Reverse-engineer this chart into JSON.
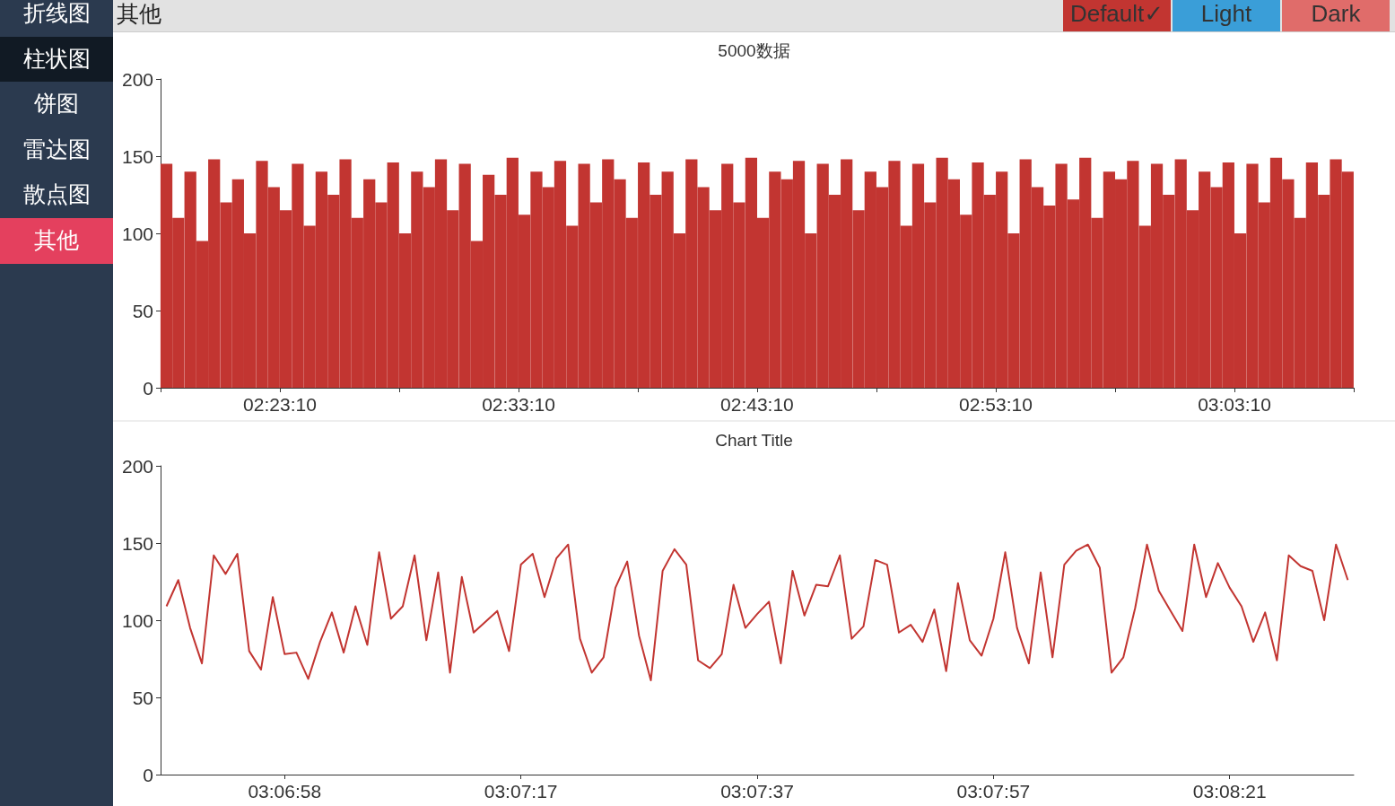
{
  "chart_data": [
    {
      "type": "other",
      "title": "其他",
      "annotations": [
        "折线图",
        "柱状图",
        "饼图",
        "雷达图",
        "散点图",
        "其他",
        "Default✓",
        "Light",
        "Dark"
      ]
    },
    {
      "type": "bar",
      "title": "5000数据",
      "color": "#c23531",
      "x": [
        2.3069,
        2.3152,
        2.3236,
        2.3319,
        2.3402,
        2.3486,
        2.3569,
        2.3652,
        2.3736,
        2.3819,
        2.3902,
        2.3986,
        2.4069,
        2.4152,
        2.4236,
        2.4319,
        2.4402,
        2.4486,
        2.4569,
        2.4652,
        2.4736,
        2.4819,
        2.4903,
        2.4986,
        2.5069,
        2.5153,
        2.5236,
        2.5319,
        2.5403,
        2.5486,
        2.5569,
        2.5653,
        2.5736,
        2.5819,
        2.5903,
        2.5986,
        2.6069,
        2.6153,
        2.6236,
        2.6319,
        2.6403,
        2.6486,
        2.6569,
        2.6653,
        2.6736,
        2.6819,
        2.6903,
        2.6986,
        2.7069,
        2.7153,
        2.7236,
        2.7319,
        2.7403,
        2.7486,
        2.7569,
        2.7653,
        2.7736,
        2.7819,
        2.7903,
        2.7986,
        2.8069,
        2.8153,
        2.8236,
        2.8319,
        2.8403,
        2.8486,
        2.8569,
        2.8653,
        2.8736,
        2.8819,
        2.8903,
        2.8986,
        2.9069,
        2.9153,
        2.9236,
        2.9319,
        2.9403,
        2.9486,
        2.9569,
        2.9653,
        2.9736,
        2.9819,
        2.9903,
        2.9986,
        3.0069,
        3.0153,
        3.0236,
        3.0319,
        3.0403,
        3.0486,
        3.0569,
        3.0653,
        3.0736,
        3.0819,
        3.0903,
        3.0986,
        3.1069,
        3.1153,
        3.1236,
        3.1319
      ],
      "values": [
        145,
        110,
        140,
        95,
        148,
        120,
        135,
        100,
        147,
        130,
        115,
        145,
        105,
        140,
        125,
        148,
        110,
        135,
        120,
        146,
        100,
        140,
        130,
        148,
        115,
        145,
        95,
        138,
        125,
        149,
        112,
        140,
        130,
        147,
        105,
        145,
        120,
        148,
        135,
        110,
        146,
        125,
        140,
        100,
        148,
        130,
        115,
        145,
        120,
        149,
        110,
        140,
        135,
        147,
        100,
        145,
        125,
        148,
        115,
        140,
        130,
        147,
        105,
        145,
        120,
        149,
        135,
        112,
        146,
        125,
        140,
        100,
        148,
        130,
        118,
        145,
        122,
        149,
        110,
        140,
        135,
        147,
        105,
        145,
        125,
        148,
        115,
        140,
        130,
        146,
        100,
        145,
        120,
        149,
        135,
        110,
        146,
        125,
        148,
        140
      ],
      "xlim": [
        2.3028,
        3.1361
      ],
      "xticks": [
        {
          "value": 2.3028,
          "label": null
        },
        {
          "value": 2.3861,
          "label": "02:23:10"
        },
        {
          "value": 2.4694,
          "label": null
        },
        {
          "value": 2.5528,
          "label": "02:33:10"
        },
        {
          "value": 2.6361,
          "label": null
        },
        {
          "value": 2.7194,
          "label": "02:43:10"
        },
        {
          "value": 2.8028,
          "label": null
        },
        {
          "value": 2.8861,
          "label": "02:53:10"
        },
        {
          "value": 2.9694,
          "label": null
        },
        {
          "value": 3.0528,
          "label": "03:03:10"
        },
        {
          "value": 3.1361,
          "label": null
        }
      ],
      "ylim": [
        0,
        200
      ],
      "yticks": [
        0,
        50,
        100,
        150,
        200
      ],
      "grid": false
    },
    {
      "type": "line",
      "title": "Chart Title",
      "color": "#c23531",
      "marker": "none",
      "line_style": "solid",
      "categories": [
        null,
        null,
        null,
        null,
        null,
        null,
        null,
        null,
        null,
        null,
        "03:06:58",
        null,
        null,
        null,
        null,
        null,
        null,
        null,
        null,
        null,
        null,
        null,
        null,
        null,
        null,
        null,
        null,
        null,
        null,
        null,
        "03:07:17",
        null,
        null,
        null,
        null,
        null,
        null,
        null,
        null,
        null,
        null,
        null,
        null,
        null,
        null,
        null,
        null,
        null,
        null,
        null,
        "03:07:37",
        null,
        null,
        null,
        null,
        null,
        null,
        null,
        null,
        null,
        null,
        null,
        null,
        null,
        null,
        null,
        null,
        null,
        null,
        null,
        "03:07:57",
        null,
        null,
        null,
        null,
        null,
        null,
        null,
        null,
        null,
        null,
        null,
        null,
        null,
        null,
        null,
        null,
        null,
        null,
        null,
        "03:08:21",
        null,
        null,
        null,
        null,
        null,
        null,
        null,
        null,
        null,
        null
      ],
      "values": [
        109,
        126,
        95,
        72,
        142,
        130,
        143,
        80,
        68,
        115,
        78,
        79,
        62,
        86,
        105,
        79,
        109,
        84,
        144,
        101,
        109,
        142,
        87,
        131,
        66,
        128,
        92,
        99,
        106,
        80,
        136,
        143,
        115,
        140,
        149,
        88,
        66,
        76,
        121,
        138,
        90,
        61,
        132,
        146,
        136,
        74,
        69,
        78,
        123,
        95,
        104,
        112,
        72,
        132,
        103,
        123,
        122,
        142,
        88,
        96,
        139,
        136,
        92,
        97,
        86,
        107,
        67,
        124,
        87,
        77,
        101,
        144,
        95,
        72,
        131,
        76,
        136,
        145,
        149,
        134,
        66,
        76,
        108,
        149,
        119,
        106,
        93,
        149,
        115,
        137,
        121,
        109,
        86,
        105,
        74,
        142,
        135,
        132,
        100,
        149,
        126
      ],
      "ylim": [
        0,
        200
      ],
      "yticks": [
        0,
        50,
        100,
        150,
        200
      ],
      "grid": false
    }
  ]
}
